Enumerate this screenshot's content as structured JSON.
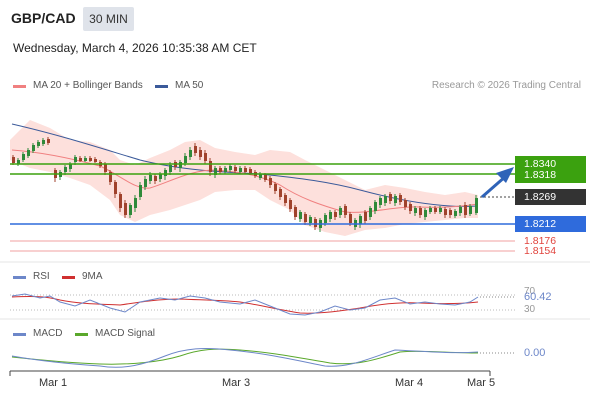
{
  "header": {
    "pair": "GBP/CAD",
    "timeframe": "30 MIN",
    "datetime": "Wednesday, March 4, 2026 10:35:38 AM CET"
  },
  "legend": {
    "ma20_label": "MA 20 + Bollinger Bands",
    "ma50_label": "MA 50",
    "credit": "Research © 2026 Trading Central",
    "rsi_label": "RSI",
    "rsi_ma_label": "9MA",
    "macd_label": "MACD",
    "macd_signal_label": "MACD Signal"
  },
  "colors": {
    "ma20": "#f08080",
    "ma50": "#3b5a9a",
    "band_fill": "#fde0dc",
    "green": "#3ba10f",
    "blue": "#2f6bdc",
    "red": "#e0433c",
    "rsi": "#6d87c9",
    "macd_signal": "#5aa82b"
  },
  "price_labels": {
    "r1": "1.8340",
    "r2": "1.8318",
    "current": "1.8269",
    "s1": "1.8212",
    "s2": "1.8176",
    "s3": "1.8154"
  },
  "rsi_labels": {
    "top": "70",
    "value": "60.42",
    "bottom": "30"
  },
  "macd_labels": {
    "value": "0.00"
  },
  "x_axis": [
    "Mar 1",
    "Mar 3",
    "Mar 4",
    "Mar 5"
  ]
}
